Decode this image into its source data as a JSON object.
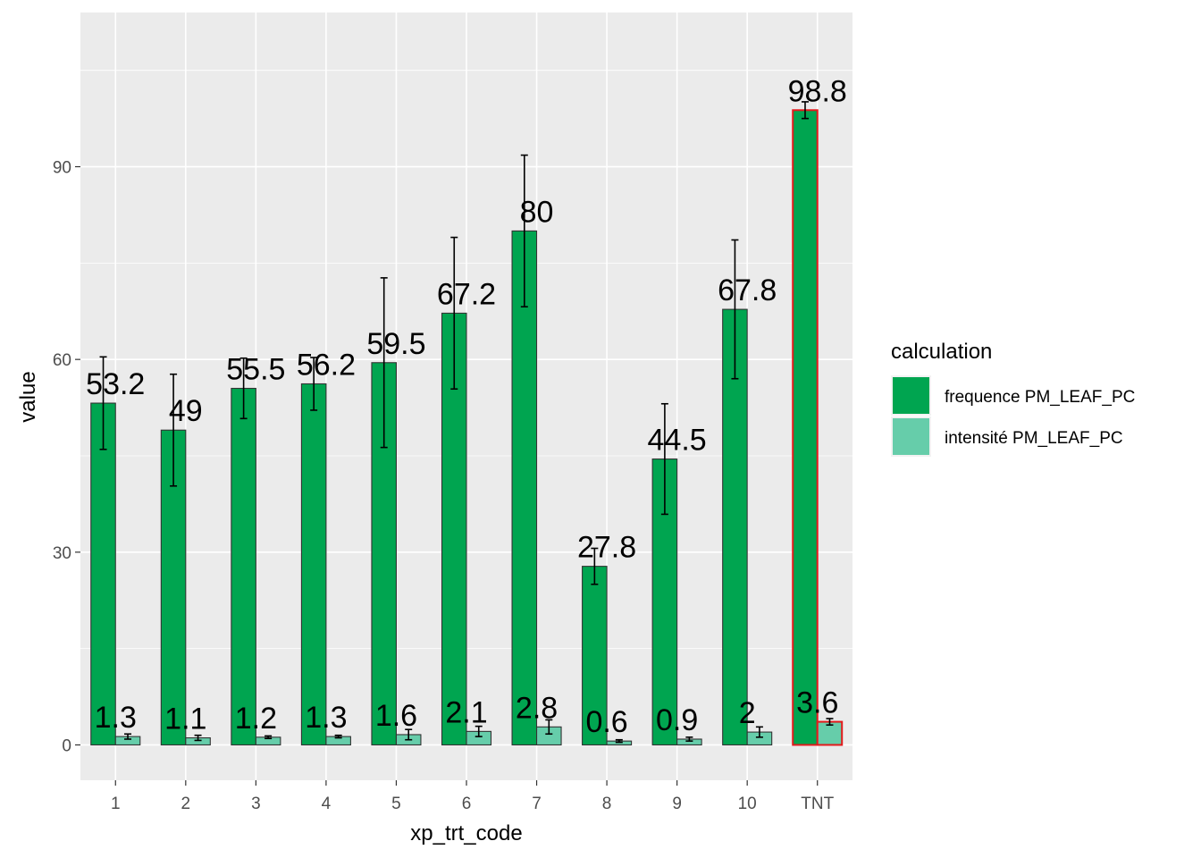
{
  "chart_data": {
    "type": "bar",
    "xlabel": "xp_trt_code",
    "ylabel": "value",
    "ylim": [
      -5.5,
      114
    ],
    "yticks": [
      0,
      30,
      60,
      90
    ],
    "categories": [
      "1",
      "2",
      "3",
      "4",
      "5",
      "6",
      "7",
      "8",
      "9",
      "10",
      "TNT"
    ],
    "highlight_category": "TNT",
    "highlight_color": "#e41a1c",
    "grid": true,
    "legend": {
      "title": "calculation",
      "position": "right"
    },
    "series": [
      {
        "name": "frequence PM_LEAF_PC",
        "color": "#00a550",
        "values": [
          53.2,
          49,
          55.5,
          56.2,
          59.5,
          67.2,
          80,
          27.8,
          44.5,
          67.8,
          98.8
        ],
        "labels": [
          "53.2",
          "49",
          "55.5",
          "56.2",
          "59.5",
          "67.2",
          "80",
          "27.8",
          "44.5",
          "67.8",
          "98.8"
        ],
        "error_low": [
          46,
          40.3,
          50.8,
          52.1,
          46.3,
          55.4,
          68.2,
          25,
          35.9,
          57,
          97.5
        ],
        "error_high": [
          60.4,
          57.7,
          60.2,
          60.3,
          72.7,
          79,
          91.8,
          30.6,
          53.1,
          78.6,
          100.1
        ]
      },
      {
        "name": "intensité PM_LEAF_PC",
        "color": "#66cdaa",
        "values": [
          1.3,
          1.1,
          1.2,
          1.3,
          1.6,
          2.1,
          2.8,
          0.6,
          0.9,
          2,
          3.6
        ],
        "labels": [
          "1.3",
          "1.1",
          "1.2",
          "1.3",
          "1.6",
          "2.1",
          "2.8",
          "0.6",
          "0.9",
          "2",
          "3.6"
        ],
        "error_low": [
          0.9,
          0.7,
          1.0,
          1.1,
          0.8,
          1.3,
          1.7,
          0.4,
          0.6,
          1.2,
          3.1
        ],
        "error_high": [
          1.7,
          1.5,
          1.4,
          1.5,
          2.4,
          2.9,
          3.9,
          0.8,
          1.2,
          2.8,
          4.1
        ]
      }
    ]
  }
}
